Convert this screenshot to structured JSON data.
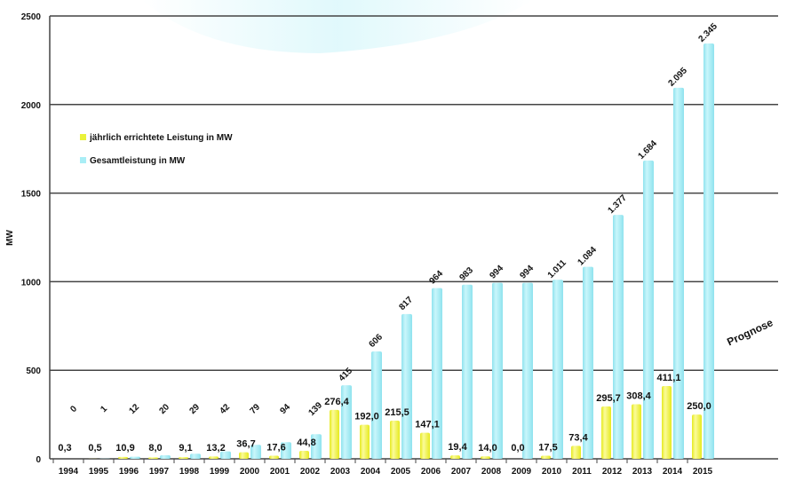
{
  "chart_data": {
    "type": "bar",
    "ylabel": "MW",
    "ylim": [
      0,
      2500
    ],
    "yticks": [
      "0",
      "500",
      "1000",
      "1500",
      "2000",
      "2500"
    ],
    "grid": true,
    "legend_position": "left",
    "categories": [
      "1994",
      "1995",
      "1996",
      "1997",
      "1998",
      "1999",
      "2000",
      "2001",
      "2002",
      "2003",
      "2004",
      "2005",
      "2006",
      "2007",
      "2008",
      "2009",
      "2010",
      "2011",
      "2012",
      "2013",
      "2014",
      "2015"
    ],
    "series": [
      {
        "name": "jährlich errichtete Leistung in MW",
        "color": "#eaf23a",
        "values": [
          0.3,
          0.5,
          10.9,
          8.0,
          9.1,
          13.2,
          36.7,
          17.6,
          44.8,
          276.4,
          192.0,
          215.5,
          147.1,
          19.4,
          14.0,
          0.0,
          17.5,
          73.4,
          295.7,
          308.4,
          411.1,
          250.0
        ],
        "labels": [
          "0,3",
          "0,5",
          "10,9",
          "8,0",
          "9,1",
          "13,2",
          "36,7",
          "17,6",
          "44,8",
          "276,4",
          "192,0",
          "215,5",
          "147,1",
          "19,4",
          "14,0",
          "0,0",
          "17,5",
          "73,4",
          "295,7",
          "308,4",
          "411,1",
          "250,0"
        ]
      },
      {
        "name": "Gesamtleistung in MW",
        "color": "#a9eef6",
        "values": [
          0,
          1,
          12,
          20,
          29,
          42,
          79,
          94,
          139,
          415,
          606,
          817,
          964,
          983,
          994,
          994,
          1011,
          1084,
          1377,
          1684,
          2095,
          2345
        ],
        "labels": [
          "0",
          "1",
          "12",
          "20",
          "29",
          "42",
          "79",
          "94",
          "139",
          "415",
          "606",
          "817",
          "964",
          "983",
          "994",
          "994",
          "1.011",
          "1.084",
          "1.377",
          "1.684",
          "2.095",
          "2.345"
        ]
      }
    ],
    "annotation": "Prognose"
  }
}
